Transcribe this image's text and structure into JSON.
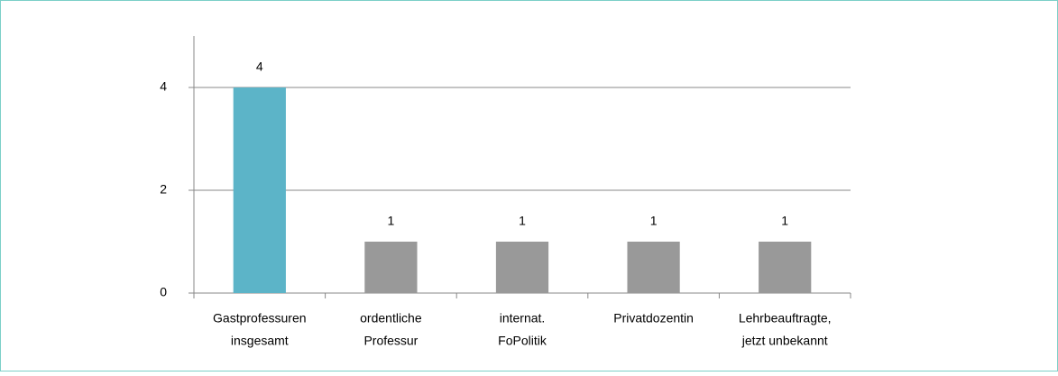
{
  "chart_data": {
    "type": "bar",
    "categories": [
      [
        "Gastprofessuren",
        "insgesamt"
      ],
      [
        "ordentliche",
        "Professur"
      ],
      [
        "internat.",
        "FoPolitik"
      ],
      [
        "Privatdozentin"
      ],
      [
        "Lehrbeauftragte,",
        "jetzt unbekannt"
      ]
    ],
    "values": [
      4,
      1,
      1,
      1,
      1
    ],
    "colors": [
      "#5cb4c8",
      "#999999",
      "#999999",
      "#999999",
      "#999999"
    ],
    "ylim": [
      0,
      5
    ],
    "yticks": [
      0,
      2,
      4
    ],
    "grid": true
  }
}
